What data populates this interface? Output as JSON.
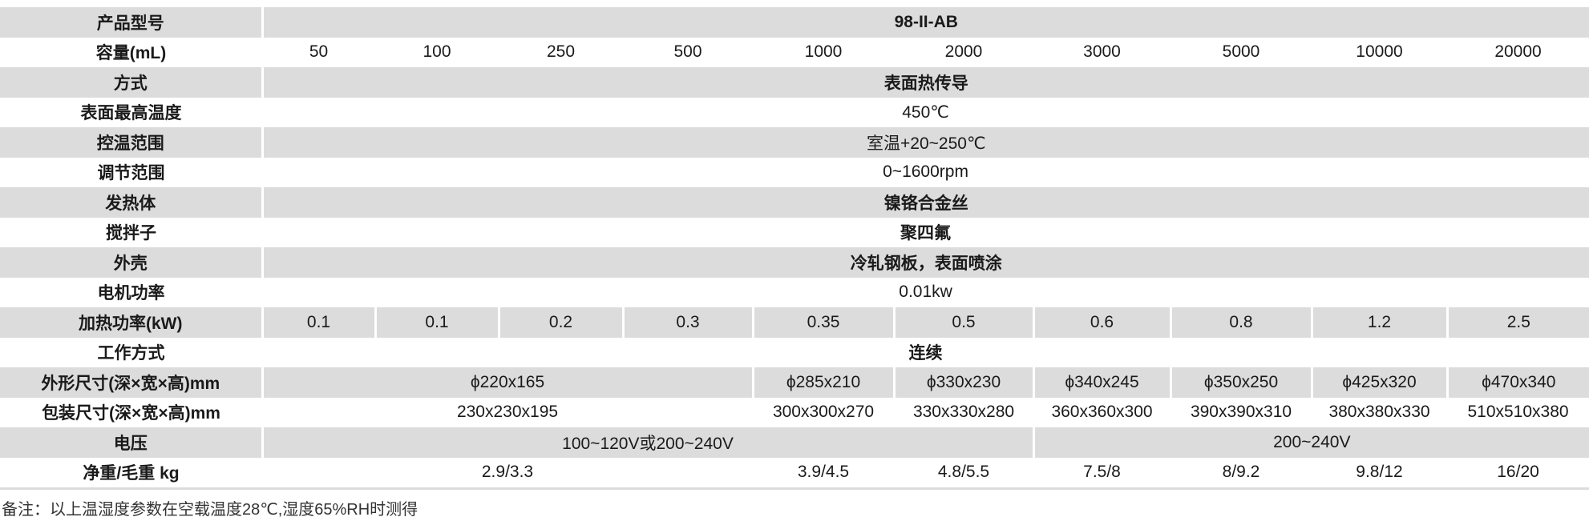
{
  "table": {
    "rows": [
      {
        "label": "产品型号",
        "cells": [
          {
            "text": "98-II-AB",
            "span": 10,
            "bold": true
          }
        ]
      },
      {
        "label": "容量(mL)",
        "cells": [
          {
            "text": "50",
            "span": 1
          },
          {
            "text": "100",
            "span": 1
          },
          {
            "text": "250",
            "span": 1
          },
          {
            "text": "500",
            "span": 1
          },
          {
            "text": "1000",
            "span": 1
          },
          {
            "text": "2000",
            "span": 1
          },
          {
            "text": "3000",
            "span": 1
          },
          {
            "text": "5000",
            "span": 1
          },
          {
            "text": "10000",
            "span": 1
          },
          {
            "text": "20000",
            "span": 1
          }
        ]
      },
      {
        "label": "方式",
        "cells": [
          {
            "text": "表面热传导",
            "span": 10,
            "bold": true
          }
        ]
      },
      {
        "label": "表面最高温度",
        "cells": [
          {
            "text": "450℃",
            "span": 10
          }
        ]
      },
      {
        "label": "控温范围",
        "cells": [
          {
            "text": "室温+20~250℃",
            "span": 10
          }
        ]
      },
      {
        "label": "调节范围",
        "cells": [
          {
            "text": "0~1600rpm",
            "span": 10
          }
        ]
      },
      {
        "label": "发热体",
        "cells": [
          {
            "text": "镍铬合金丝",
            "span": 10,
            "bold": true
          }
        ]
      },
      {
        "label": "搅拌子",
        "cells": [
          {
            "text": "聚四氟",
            "span": 10,
            "bold": true
          }
        ]
      },
      {
        "label": "外壳",
        "cells": [
          {
            "text": "冷轧钢板，表面喷涂",
            "span": 10,
            "bold": true
          }
        ]
      },
      {
        "label": "电机功率",
        "cells": [
          {
            "text": "0.01kw",
            "span": 10
          }
        ]
      },
      {
        "label": "加热功率(kW)",
        "cells": [
          {
            "text": "0.1",
            "span": 1
          },
          {
            "text": "0.1",
            "span": 1
          },
          {
            "text": "0.2",
            "span": 1
          },
          {
            "text": "0.3",
            "span": 1
          },
          {
            "text": "0.35",
            "span": 1
          },
          {
            "text": "0.5",
            "span": 1
          },
          {
            "text": "0.6",
            "span": 1
          },
          {
            "text": "0.8",
            "span": 1
          },
          {
            "text": "1.2",
            "span": 1
          },
          {
            "text": "2.5",
            "span": 1
          }
        ]
      },
      {
        "label": "工作方式",
        "cells": [
          {
            "text": "连续",
            "span": 10,
            "bold": true
          }
        ]
      },
      {
        "label": "外形尺寸(深×宽×高)mm",
        "cells": [
          {
            "text": "ϕ220x165",
            "span": 4
          },
          {
            "text": "ϕ285x210",
            "span": 1
          },
          {
            "text": "ϕ330x230",
            "span": 1
          },
          {
            "text": "ϕ340x245",
            "span": 1
          },
          {
            "text": "ϕ350x250",
            "span": 1
          },
          {
            "text": "ϕ425x320",
            "span": 1
          },
          {
            "text": "ϕ470x340",
            "span": 1
          }
        ]
      },
      {
        "label": "包装尺寸(深×宽×高)mm",
        "cells": [
          {
            "text": "230x230x195",
            "span": 4
          },
          {
            "text": "300x300x270",
            "span": 1
          },
          {
            "text": "330x330x280",
            "span": 1
          },
          {
            "text": "360x360x300",
            "span": 1
          },
          {
            "text": "390x390x310",
            "span": 1
          },
          {
            "text": "380x380x330",
            "span": 1
          },
          {
            "text": "510x510x380",
            "span": 1
          }
        ]
      },
      {
        "label": "电压",
        "cells": [
          {
            "text": "100~120V或200~240V",
            "span": 6
          },
          {
            "text": "200~240V",
            "span": 4
          }
        ]
      },
      {
        "label": "净重/毛重 kg",
        "cells": [
          {
            "text": "2.9/3.3",
            "span": 4
          },
          {
            "text": "3.9/4.5",
            "span": 1
          },
          {
            "text": "4.8/5.5",
            "span": 1
          },
          {
            "text": "7.5/8",
            "span": 1
          },
          {
            "text": "8/9.2",
            "span": 1
          },
          {
            "text": "9.8/12",
            "span": 1
          },
          {
            "text": "16/20",
            "span": 1
          }
        ]
      }
    ]
  },
  "note": "备注：以上温湿度参数在空载温度28℃,湿度65%RH时测得",
  "colors": {
    "row_shade": "#dcdcdd",
    "text": "#1a1a1a"
  }
}
